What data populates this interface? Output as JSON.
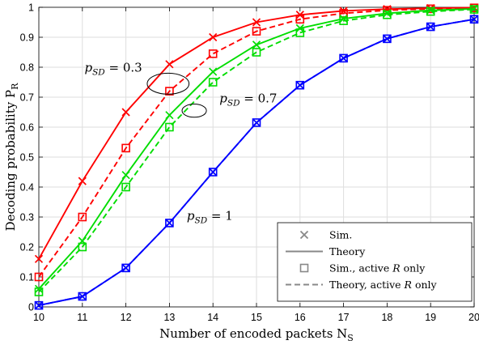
{
  "chart_data": {
    "type": "line",
    "xlabel": "Number of encoded packets N",
    "xlabel_sub": "S",
    "ylabel": "Decoding probability P",
    "ylabel_sub": "R",
    "xlim": [
      10,
      20
    ],
    "ylim": [
      0,
      1
    ],
    "x_ticks": [
      10,
      11,
      12,
      13,
      14,
      15,
      16,
      17,
      18,
      19,
      20
    ],
    "y_ticks": [
      0,
      0.1,
      0.2,
      0.3,
      0.4,
      0.5,
      0.6,
      0.7,
      0.8,
      0.9,
      1
    ],
    "y_tick_labels": [
      "0",
      "0.1",
      "0.2",
      "0.3",
      "0.4",
      "0.5",
      "0.6",
      "0.7",
      "0.8",
      "0.9",
      "1"
    ],
    "grid": true,
    "x": [
      10,
      11,
      12,
      13,
      14,
      15,
      16,
      17,
      18,
      19,
      20
    ],
    "series": [
      {
        "color": "#ff0000",
        "style": "solid",
        "marker": "x",
        "values": [
          0.16,
          0.42,
          0.65,
          0.81,
          0.9,
          0.95,
          0.975,
          0.988,
          0.994,
          0.997,
          0.999
        ]
      },
      {
        "color": "#ff0000",
        "style": "dashed",
        "marker": "square",
        "values": [
          0.1,
          0.3,
          0.53,
          0.72,
          0.845,
          0.92,
          0.96,
          0.98,
          0.99,
          0.995,
          0.998
        ]
      },
      {
        "color": "#00dd00",
        "style": "solid",
        "marker": "x",
        "values": [
          0.06,
          0.22,
          0.44,
          0.64,
          0.785,
          0.875,
          0.93,
          0.962,
          0.98,
          0.99,
          0.995
        ]
      },
      {
        "color": "#00dd00",
        "style": "dashed",
        "marker": "square",
        "values": [
          0.05,
          0.2,
          0.4,
          0.6,
          0.75,
          0.85,
          0.915,
          0.955,
          0.975,
          0.986,
          0.993
        ]
      },
      {
        "color": "#0000ff",
        "style": "solid",
        "marker": "x",
        "values": [
          0.005,
          0.035,
          0.13,
          0.28,
          0.45,
          0.615,
          0.74,
          0.83,
          0.895,
          0.935,
          0.96
        ]
      },
      {
        "color": "#0000ff",
        "style": "dashed",
        "marker": "square",
        "values": [
          0.005,
          0.035,
          0.13,
          0.28,
          0.45,
          0.615,
          0.74,
          0.83,
          0.895,
          0.935,
          0.96
        ]
      }
    ],
    "legend": {
      "position": "bottom-right",
      "entries": [
        {
          "label": "Sim.",
          "marker": "x",
          "line": "none"
        },
        {
          "label": "Theory",
          "marker": "none",
          "line": "solid"
        },
        {
          "label": "Sim., active ",
          "label_italic": "R",
          "label_after": " only",
          "marker": "square",
          "line": "none"
        },
        {
          "label": "Theory, active ",
          "label_italic": "R",
          "label_after": " only",
          "marker": "none",
          "line": "dashed"
        }
      ]
    },
    "annotations": [
      {
        "symbol": "p",
        "sub": "SD",
        "text": " = 0.3",
        "at_x": 11.05,
        "at_y": 0.785
      },
      {
        "symbol": "p",
        "sub": "SD",
        "text": " = 0.7",
        "at_x": 14.15,
        "at_y": 0.682
      },
      {
        "symbol": "p",
        "sub": "SD",
        "text": " = 1",
        "at_x": 13.4,
        "at_y": 0.29
      }
    ],
    "ellipses": [
      {
        "cx": 12.97,
        "cy": 0.745,
        "rx": 0.48,
        "ry": 0.035
      },
      {
        "cx": 13.57,
        "cy": 0.655,
        "rx": 0.28,
        "ry": 0.022
      }
    ]
  }
}
